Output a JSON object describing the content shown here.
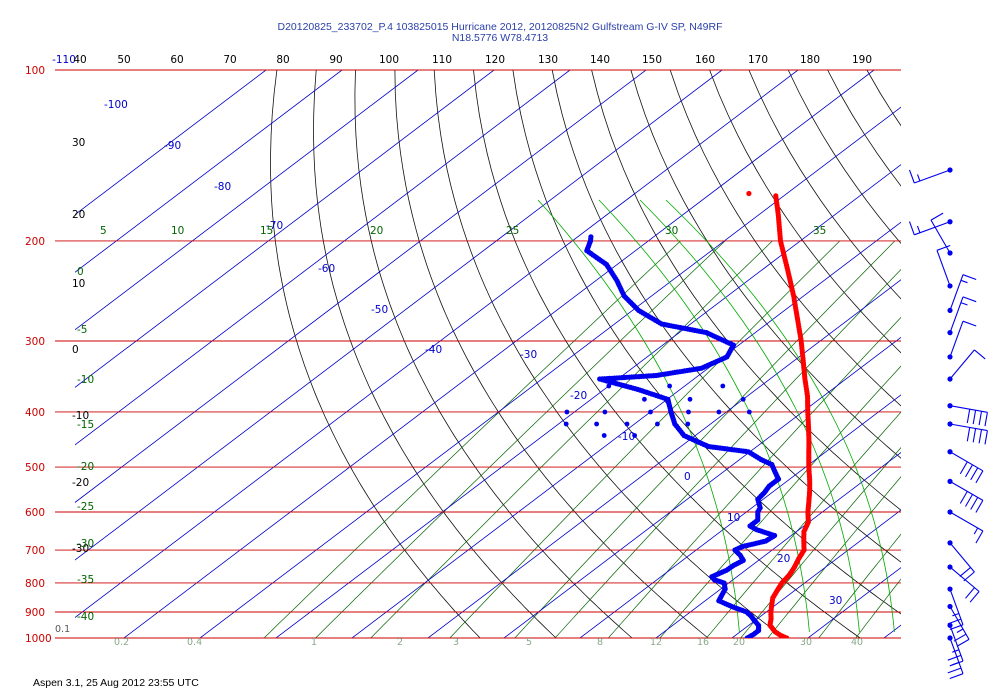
{
  "header": {
    "line1": "D20120825_233702_P.4 103825015 Hurricane 2012, 20120825N2 Gulfstream G-IV SP, N49RF",
    "line2": "N18.5776 W78.4713"
  },
  "footer": "Aspen 3.1, 25 Aug 2012  23:55 UTC",
  "colors": {
    "isobar": "#cc0000",
    "isotherm": "#0000cc",
    "mixing_ratio": "#006400",
    "adiabat": "#000000",
    "temperature": "#ff0000",
    "dewpoint": "#0000ee",
    "theta_e": "#00aa00"
  },
  "chart_data": {
    "type": "skew-t log-p",
    "pressure_axis": {
      "ticks": [
        "100",
        "200",
        "300",
        "400",
        "500",
        "600",
        "700",
        "800",
        "900",
        "1000"
      ],
      "range": [
        1000,
        100
      ],
      "scale": "log"
    },
    "top_scale_ticks": [
      "-110",
      "40",
      "50",
      "60",
      "70",
      "80",
      "90",
      "100",
      "110",
      "120",
      "130",
      "140",
      "150",
      "160",
      "170",
      "180",
      "190"
    ],
    "isotherm_labels": [
      "-100",
      "-90",
      "-80",
      "-70",
      "-60",
      "-50",
      "-40",
      "-30",
      "-20",
      "-10",
      "0",
      "10",
      "20",
      "30"
    ],
    "mixing_ratio_labels": [
      "0.1",
      "0.2",
      "0.4",
      "1",
      "2",
      "3",
      "5",
      "8",
      "12",
      "16",
      "20",
      "30",
      "40"
    ],
    "theta_e_labels": [
      "5",
      "10",
      "15",
      "20",
      "25",
      "30",
      "35"
    ],
    "left_labels_black": [
      "30",
      "20",
      "10",
      "0",
      "-10",
      "-20",
      "-30"
    ],
    "left_labels_green": [
      "0",
      "-5",
      "-10",
      "-15",
      "-20",
      "-25",
      "-30",
      "-35",
      "-40"
    ],
    "temperature_profile": [
      [
        1000,
        27.2
      ],
      [
        990,
        26.0
      ],
      [
        975,
        24.6
      ],
      [
        950,
        22.8
      ],
      [
        925,
        21.8
      ],
      [
        900,
        20.6
      ],
      [
        875,
        19.5
      ],
      [
        850,
        18.4
      ],
      [
        825,
        17.7
      ],
      [
        800,
        17.0
      ],
      [
        775,
        16.6
      ],
      [
        750,
        15.9
      ],
      [
        725,
        15.0
      ],
      [
        700,
        14.2
      ],
      [
        675,
        12.6
      ],
      [
        650,
        11.0
      ],
      [
        625,
        9.9
      ],
      [
        600,
        8.1
      ],
      [
        575,
        6.4
      ],
      [
        550,
        4.6
      ],
      [
        525,
        2.6
      ],
      [
        500,
        0.4
      ],
      [
        475,
        -1.8
      ],
      [
        450,
        -4.1
      ],
      [
        425,
        -6.6
      ],
      [
        400,
        -9.3
      ],
      [
        375,
        -12.1
      ],
      [
        350,
        -15.4
      ],
      [
        325,
        -18.8
      ],
      [
        300,
        -22.5
      ],
      [
        275,
        -26.7
      ],
      [
        250,
        -31.3
      ],
      [
        225,
        -36.6
      ],
      [
        200,
        -42.6
      ],
      [
        180,
        -47.4
      ],
      [
        165,
        -51.5
      ]
    ],
    "dewpoint_profile": [
      [
        1000,
        22.0
      ],
      [
        985,
        22.2
      ],
      [
        970,
        22.2
      ],
      [
        950,
        21.3
      ],
      [
        930,
        19.8
      ],
      [
        915,
        18.7
      ],
      [
        900,
        17.4
      ],
      [
        880,
        14.5
      ],
      [
        860,
        11.8
      ],
      [
        840,
        11.2
      ],
      [
        820,
        10.6
      ],
      [
        800,
        9.4
      ],
      [
        790,
        7.6
      ],
      [
        780,
        6.7
      ],
      [
        760,
        7.5
      ],
      [
        745,
        7.6
      ],
      [
        730,
        8.0
      ],
      [
        715,
        6.7
      ],
      [
        700,
        5.1
      ],
      [
        690,
        5.5
      ],
      [
        675,
        7.6
      ],
      [
        660,
        7.8
      ],
      [
        645,
        4.5
      ],
      [
        635,
        2.9
      ],
      [
        620,
        2.9
      ],
      [
        600,
        1.5
      ],
      [
        590,
        1.1
      ],
      [
        570,
        -0.7
      ],
      [
        555,
        -1.0
      ],
      [
        540,
        -1.5
      ],
      [
        525,
        -1.5
      ],
      [
        510,
        -3.2
      ],
      [
        495,
        -4.9
      ],
      [
        485,
        -7.2
      ],
      [
        470,
        -10.2
      ],
      [
        460,
        -16.4
      ],
      [
        440,
        -21.5
      ],
      [
        420,
        -24.7
      ],
      [
        400,
        -27.3
      ],
      [
        380,
        -29.9
      ],
      [
        365,
        -35.6
      ],
      [
        350,
        -42.4
      ],
      [
        345,
        -35.6
      ],
      [
        335,
        -30.9
      ],
      [
        320,
        -29.5
      ],
      [
        305,
        -30.7
      ],
      [
        290,
        -36.4
      ],
      [
        280,
        -43.8
      ],
      [
        265,
        -49.2
      ],
      [
        250,
        -53.6
      ],
      [
        235,
        -57.2
      ],
      [
        220,
        -61.4
      ],
      [
        208,
        -66.4
      ],
      [
        200,
        -67.6
      ],
      [
        195,
        -68.6
      ]
    ],
    "dewpoint_scatter": [
      [
        400,
        -41.0
      ],
      [
        400,
        -36.0
      ],
      [
        400,
        -30.0
      ],
      [
        400,
        -25.0
      ],
      [
        400,
        -21.0
      ],
      [
        400,
        -17.0
      ],
      [
        380,
        -33.0
      ],
      [
        380,
        -27.0
      ],
      [
        380,
        -20.0
      ],
      [
        360,
        -40.0
      ],
      [
        360,
        -32.0
      ],
      [
        360,
        -25.0
      ],
      [
        420,
        -39.0
      ],
      [
        420,
        -35.0
      ],
      [
        420,
        -31.0
      ],
      [
        420,
        -27.0
      ],
      [
        420,
        -23.0
      ],
      [
        440,
        -32.0
      ],
      [
        440,
        -28.0
      ]
    ],
    "isolated_point": [
      [
        165,
        -55.0
      ]
    ],
    "wind_barbs": [
      {
        "pressure": 150,
        "direction_deg": 250,
        "speed_kt": 15
      },
      {
        "pressure": 185,
        "direction_deg": 250,
        "speed_kt": 15
      },
      {
        "pressure": 210,
        "direction_deg": 330,
        "speed_kt": 10
      },
      {
        "pressure": 240,
        "direction_deg": 340,
        "speed_kt": 10
      },
      {
        "pressure": 265,
        "direction_deg": 20,
        "speed_kt": 15
      },
      {
        "pressure": 290,
        "direction_deg": 20,
        "speed_kt": 15
      },
      {
        "pressure": 320,
        "direction_deg": 20,
        "speed_kt": 10
      },
      {
        "pressure": 350,
        "direction_deg": 40,
        "speed_kt": 10
      },
      {
        "pressure": 390,
        "direction_deg": 100,
        "speed_kt": 40
      },
      {
        "pressure": 420,
        "direction_deg": 100,
        "speed_kt": 40
      },
      {
        "pressure": 470,
        "direction_deg": 120,
        "speed_kt": 40
      },
      {
        "pressure": 530,
        "direction_deg": 120,
        "speed_kt": 40
      },
      {
        "pressure": 600,
        "direction_deg": 120,
        "speed_kt": 15
      },
      {
        "pressure": 680,
        "direction_deg": 140,
        "speed_kt": 20
      },
      {
        "pressure": 750,
        "direction_deg": 130,
        "speed_kt": 20
      },
      {
        "pressure": 820,
        "direction_deg": 160,
        "speed_kt": 25
      },
      {
        "pressure": 880,
        "direction_deg": 150,
        "speed_kt": 25
      },
      {
        "pressure": 950,
        "direction_deg": 160,
        "speed_kt": 25
      },
      {
        "pressure": 1000,
        "direction_deg": 160,
        "speed_kt": 25
      }
    ]
  }
}
